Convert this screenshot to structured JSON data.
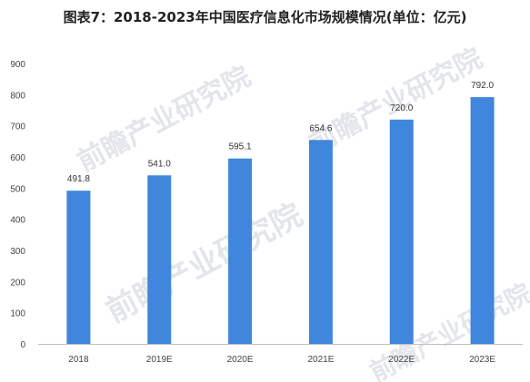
{
  "title": "图表7：2018-2023年中国医疗信息化市场规模情况(单位：亿元)",
  "watermark": "前瞻产业研究院",
  "colors": {
    "bar": "#3f86dc",
    "axis": "#bfbfbf"
  },
  "chart_data": {
    "type": "bar",
    "title": "图表7：2018-2023年中国医疗信息化市场规模情况(单位：亿元)",
    "categories": [
      "2018",
      "2019E",
      "2020E",
      "2021E",
      "2022E",
      "2023E"
    ],
    "values": [
      491.8,
      541.0,
      595.1,
      654.6,
      720.0,
      792.0
    ],
    "value_labels": [
      "491.8",
      "541.0",
      "595.1",
      "654.6",
      "720.0",
      "792.0"
    ],
    "y_ticks": [
      "0",
      "100",
      "200",
      "300",
      "400",
      "500",
      "600",
      "700",
      "800",
      "900"
    ],
    "ylim": [
      0,
      900
    ],
    "xlabel": "",
    "ylabel": "",
    "grid": false,
    "legend": "none"
  }
}
